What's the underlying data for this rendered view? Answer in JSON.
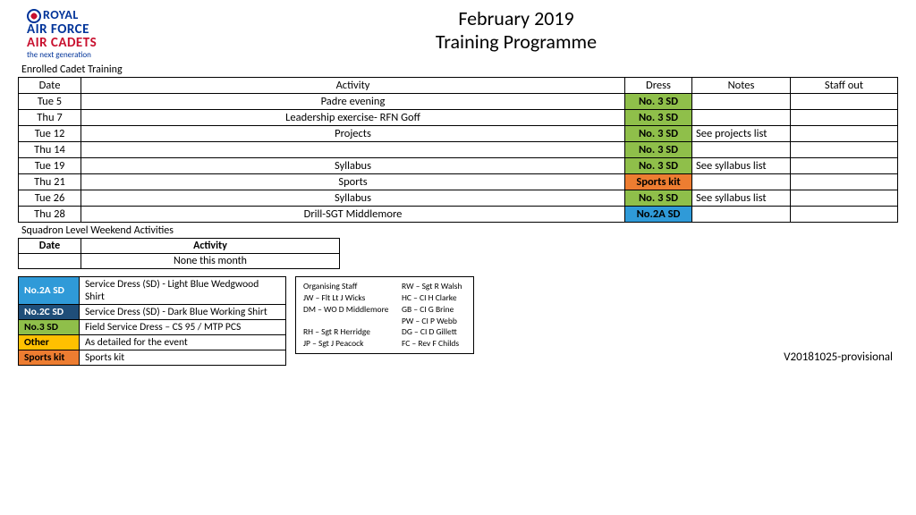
{
  "colors": {
    "no2a": "#2f9ad8",
    "no2c": "#1f4e79",
    "no3": "#8fbf4a",
    "other": "#ffc000",
    "sports": "#ed7d31",
    "raf_blue": "#003399",
    "raf_red": "#c8102e"
  },
  "logo": {
    "line1a": "ROYAL",
    "line2": "AIR FORCE",
    "line3": "AIR CADETS",
    "tag": "the next generation"
  },
  "title": {
    "line1": "February 2019",
    "line2": "Training Programme"
  },
  "section1_label": "Enrolled Cadet Training",
  "sched_headers": {
    "date": "Date",
    "activity": "Activity",
    "dress": "Dress",
    "notes": "Notes",
    "staff": "Staff out"
  },
  "sched_rows": [
    {
      "date": "Tue 5",
      "activity": "Padre evening",
      "dress": "No. 3 SD",
      "dress_key": "no3",
      "notes": "",
      "staff": ""
    },
    {
      "date": "Thu 7",
      "activity": "Leadership exercise- RFN Goff",
      "dress": "No. 3 SD",
      "dress_key": "no3",
      "notes": "",
      "staff": ""
    },
    {
      "date": "Tue 12",
      "activity": "Projects",
      "dress": "No. 3 SD",
      "dress_key": "no3",
      "notes": "See projects list",
      "staff": ""
    },
    {
      "date": "Thu 14",
      "activity": "",
      "dress": "No. 3 SD",
      "dress_key": "no3",
      "notes": "",
      "staff": ""
    },
    {
      "date": "Tue 19",
      "activity": "Syllabus",
      "dress": "No. 3 SD",
      "dress_key": "no3",
      "notes": "See syllabus list",
      "staff": ""
    },
    {
      "date": "Thu 21",
      "activity": "Sports",
      "dress": "Sports kit",
      "dress_key": "sports",
      "notes": "",
      "staff": ""
    },
    {
      "date": "Tue 26",
      "activity": "Syllabus",
      "dress": "No. 3 SD",
      "dress_key": "no3",
      "notes": "See syllabus list",
      "staff": ""
    },
    {
      "date": "Thu 28",
      "activity": "Drill-SGT Middlemore",
      "dress": "No.2A SD",
      "dress_key": "no2a",
      "notes": "",
      "staff": ""
    }
  ],
  "section2_label": "Squadron Level Weekend Activities",
  "weekend_headers": {
    "date": "Date",
    "activity": "Activity"
  },
  "weekend_rows": [
    {
      "date": "",
      "activity": "None this month"
    }
  ],
  "legend": [
    {
      "code": "No.2A SD",
      "key": "no2a",
      "desc": "Service Dress (SD) - Light Blue Wedgwood Shirt"
    },
    {
      "code": "No.2C SD",
      "key": "no2c",
      "desc": "Service Dress (SD) - Dark Blue Working Shirt"
    },
    {
      "code": "No.3 SD",
      "key": "no3",
      "desc": "Field Service Dress – CS 95 / MTP PCS"
    },
    {
      "code": "Other",
      "key": "other",
      "desc": "As detailed for the event"
    },
    {
      "code": "Sports kit",
      "key": "sports",
      "desc": "Sports kit"
    }
  ],
  "staff_box_title": "Organising Staff",
  "staff": [
    [
      "Organising Staff",
      "RW – Sgt R Walsh"
    ],
    [
      "JW – Flt Lt J Wicks",
      "HC – CI H Clarke"
    ],
    [
      "DM – WO D Middlemore",
      "GB – CI G Brine"
    ],
    [
      "",
      "PW – CI P Webb"
    ],
    [
      "RH – Sgt R Herridge",
      "DG – CI D Gillett"
    ],
    [
      "JP – Sgt J Peacock",
      "FC – Rev F Childs"
    ]
  ],
  "version": "V20181025-provisional"
}
